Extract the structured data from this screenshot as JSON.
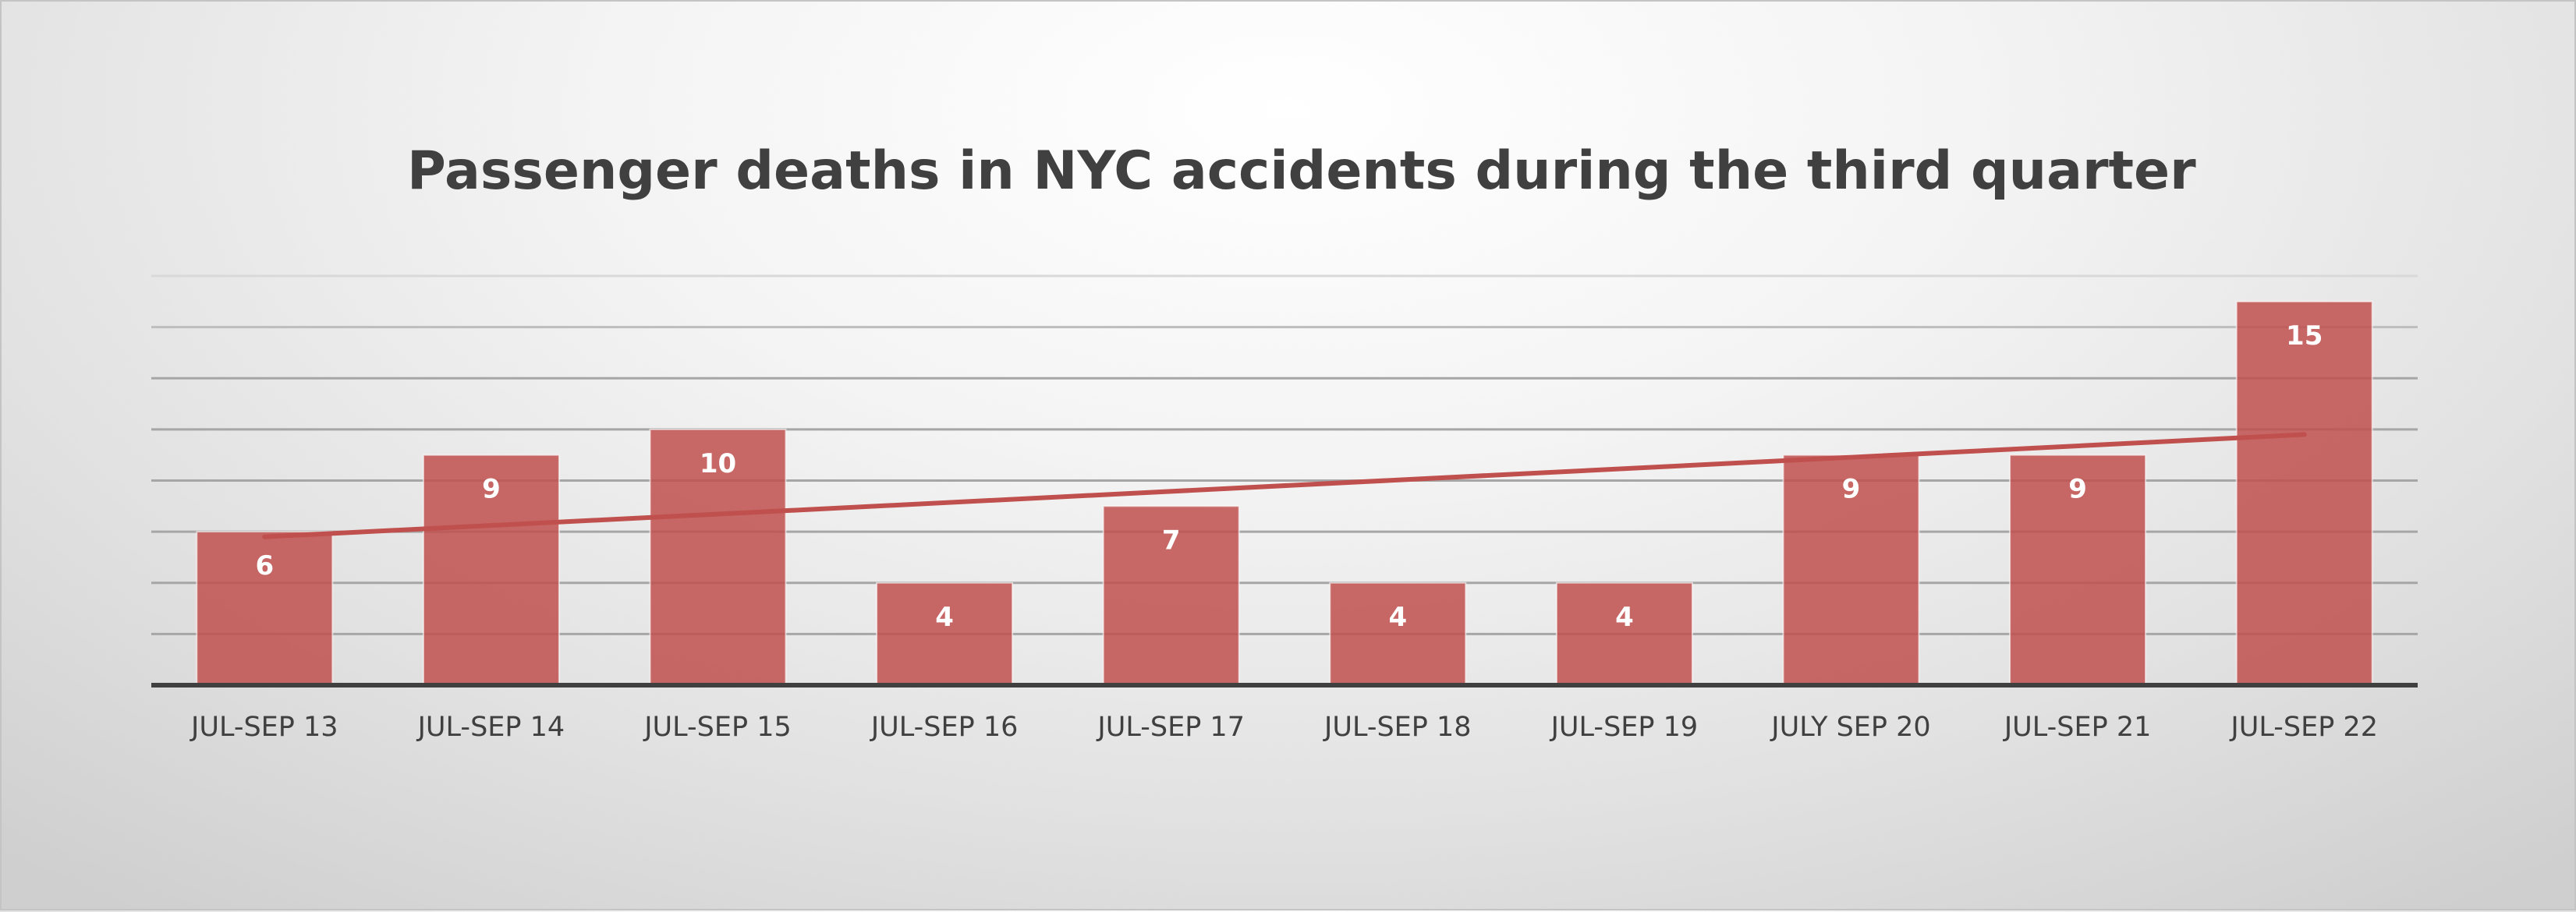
{
  "chart_data": {
    "type": "bar",
    "title": "Passenger deaths in NYC accidents during the third quarter",
    "xlabel": "",
    "ylabel": "",
    "categories": [
      "JUL-SEP 13",
      "JUL-SEP 14",
      "JUL-SEP 15",
      "JUL-SEP 16",
      "JUL-SEP 17",
      "JUL-SEP 18",
      "JUL-SEP 19",
      "JULY SEP 20",
      "JUL-SEP 21",
      "JUL-SEP 22"
    ],
    "series": [
      {
        "values": [
          6,
          9,
          10,
          4,
          7,
          4,
          4,
          9,
          9,
          15
        ],
        "color": "#c0504d"
      }
    ],
    "trendline": {
      "type": "linear",
      "color": "#c0504d",
      "start_value": 5.8,
      "end_value": 9.8
    },
    "ylim": [
      0,
      16
    ],
    "y_gridline_step": 2,
    "y_axis_labels_visible": false,
    "grid": true,
    "legend": "none",
    "data_labels": true
  }
}
